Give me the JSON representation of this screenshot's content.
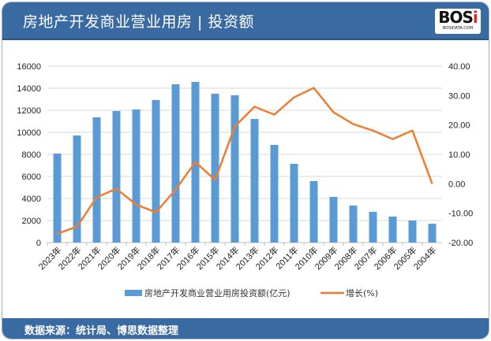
{
  "header": {
    "title": "房地产开发商业营业用房 | 投资额",
    "logo_text": "BOSi",
    "logo_subtext": "BOSIDATA.COM"
  },
  "footer": {
    "source": "数据来源：统计局、博思数据整理"
  },
  "colors": {
    "bar": "#5b9bd5",
    "line": "#ed7d31",
    "header": "#3a6aa2"
  },
  "chart_data": {
    "type": "bar+line",
    "categories": [
      "2023年",
      "2022年",
      "2021年",
      "2020年",
      "2019年",
      "2018年",
      "2017年",
      "2016年",
      "2015年",
      "2014年",
      "2013年",
      "2012年",
      "2011年",
      "2010年",
      "2009年",
      "2008年",
      "2007年",
      "2006年",
      "2005年",
      "2004年"
    ],
    "series": [
      {
        "name": "房地产开发商业营业用房投资额(亿元)",
        "type": "bar",
        "axis": "left",
        "values": [
          8070,
          9710,
          11360,
          11930,
          12070,
          12930,
          14360,
          14570,
          13500,
          13360,
          11210,
          8860,
          7140,
          5570,
          4140,
          3360,
          2790,
          2360,
          2000,
          1710
        ]
      },
      {
        "name": "增长(%)",
        "type": "line",
        "axis": "right",
        "values": [
          -17.0,
          -14.6,
          -4.6,
          -1.7,
          -7.1,
          -9.7,
          -2.0,
          7.4,
          1.3,
          19.5,
          26.2,
          23.5,
          29.4,
          32.6,
          24.3,
          20.3,
          18.1,
          15.2,
          18.1,
          0.0
        ]
      }
    ],
    "y_left": {
      "range": [
        0,
        16000
      ],
      "ticks": [
        "0",
        "2000",
        "4000",
        "6000",
        "8000",
        "10000",
        "12000",
        "14000",
        "16000"
      ]
    },
    "y_right": {
      "range": [
        -20,
        40
      ],
      "ticks": [
        "-20.00",
        "-10.00",
        "0.00",
        "10.00",
        "20.00",
        "30.00",
        "40.00"
      ]
    },
    "grid": true,
    "legend": "bottom"
  }
}
